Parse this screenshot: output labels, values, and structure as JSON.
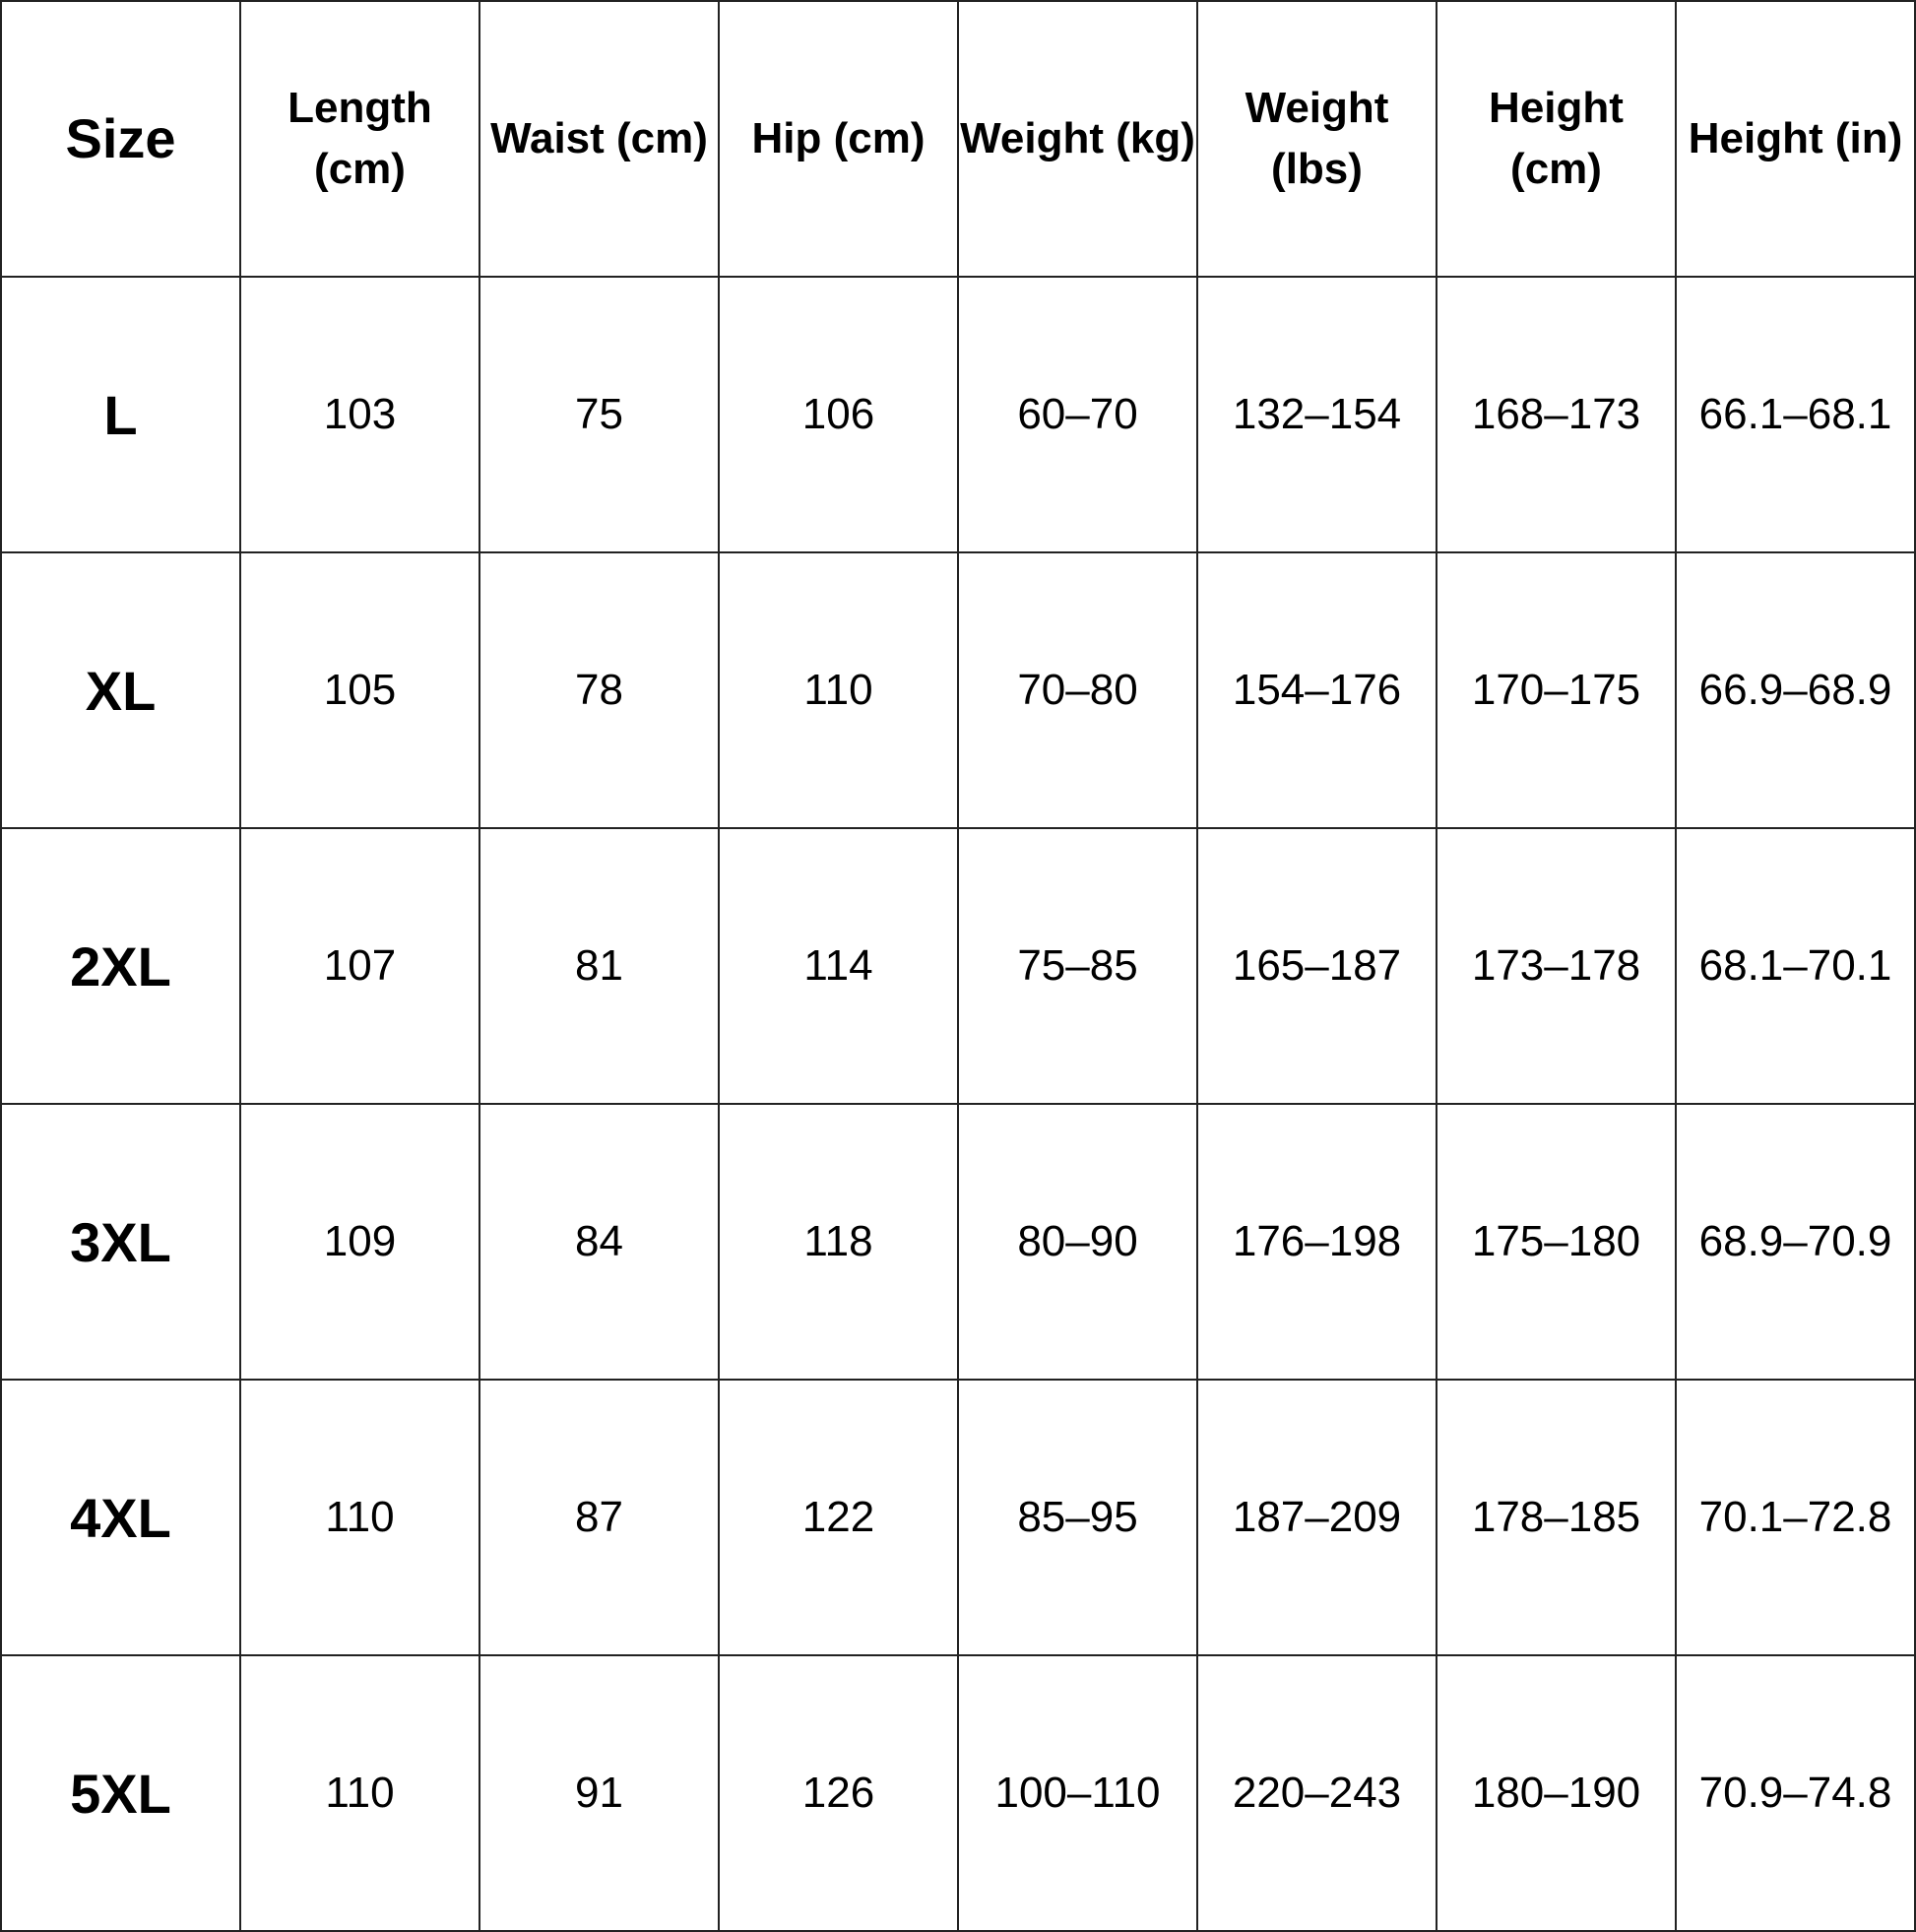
{
  "headers": [
    "Size",
    "Length (cm)",
    "Waist (cm)",
    "Hip (cm)",
    "Weight (kg)",
    "Weight (lbs)",
    "Height (cm)",
    "Height (in)"
  ],
  "rows": [
    [
      "L",
      "103",
      "75",
      "106",
      "60–70",
      "132–154",
      "168–173",
      "66.1–68.1"
    ],
    [
      "XL",
      "105",
      "78",
      "110",
      "70–80",
      "154–176",
      "170–175",
      "66.9–68.9"
    ],
    [
      "2XL",
      "107",
      "81",
      "114",
      "75–85",
      "165–187",
      "173–178",
      "68.1–70.1"
    ],
    [
      "3XL",
      "109",
      "84",
      "118",
      "80–90",
      "176–198",
      "175–180",
      "68.9–70.9"
    ],
    [
      "4XL",
      "110",
      "87",
      "122",
      "85–95",
      "187–209",
      "178–185",
      "70.1–72.8"
    ],
    [
      "5XL",
      "110",
      "91",
      "126",
      "100–110",
      "220–243",
      "180–190",
      "70.9–74.8"
    ]
  ]
}
